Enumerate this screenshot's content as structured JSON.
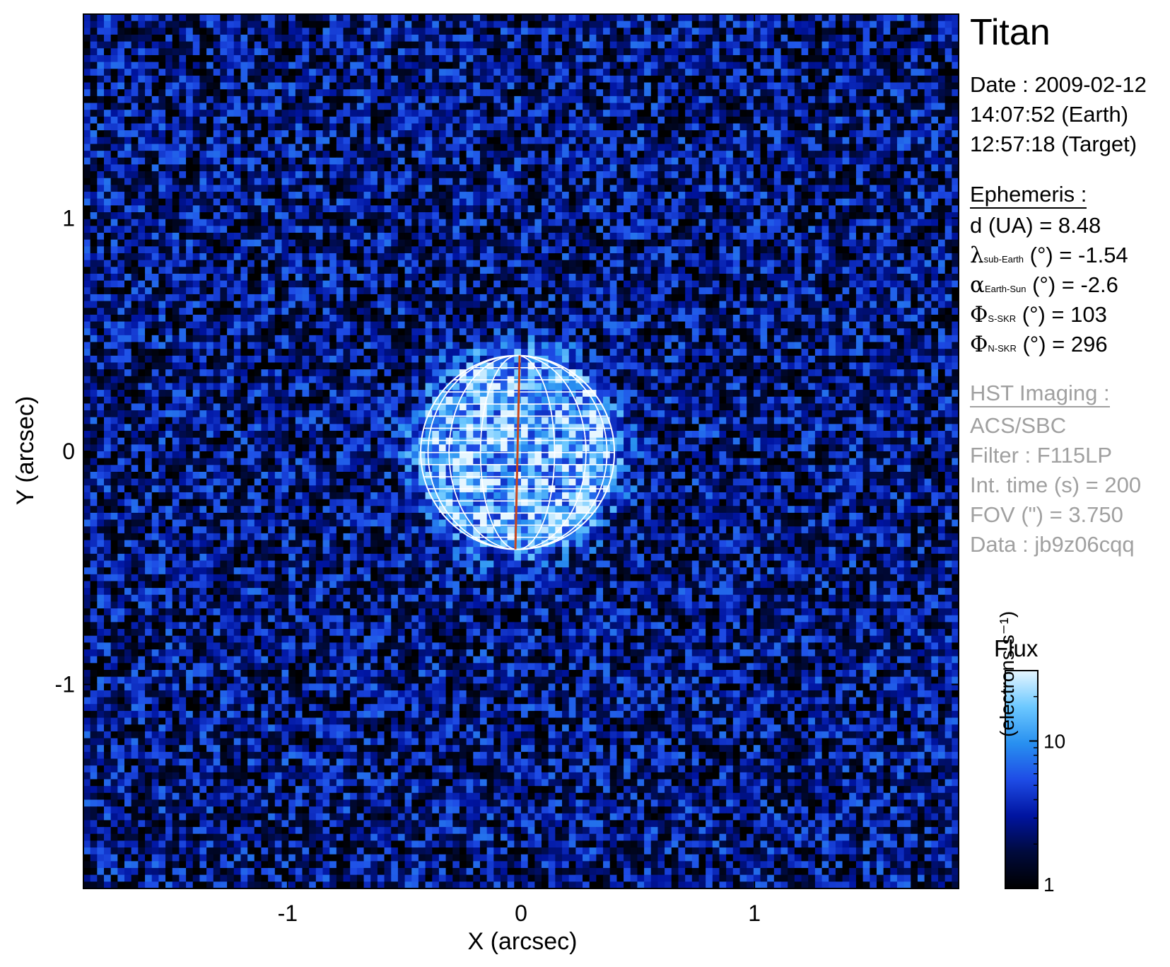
{
  "chart_data": {
    "type": "heatmap",
    "title": "Titan",
    "xlabel": "X (arcsec)",
    "ylabel": "Y (arcsec)",
    "xlim": [
      -1.875,
      1.875
    ],
    "ylim": [
      -1.875,
      1.875
    ],
    "x_ticks": [
      {
        "value": -1,
        "label": "-1"
      },
      {
        "value": 0,
        "label": "0"
      },
      {
        "value": 1,
        "label": "1"
      }
    ],
    "y_ticks": [
      {
        "value": 1,
        "label": "1"
      },
      {
        "value": 0,
        "label": "0"
      },
      {
        "value": -1,
        "label": "-1"
      }
    ],
    "colorbar": {
      "title": "Flux",
      "unit": "(electrons.s⁻¹)",
      "scale": "log",
      "range": [
        1,
        30
      ],
      "ticks": [
        {
          "value": 10,
          "label": "10"
        },
        {
          "value": 1,
          "label": "1"
        }
      ],
      "colors": [
        "#000000",
        "#000a3c",
        "#0014a0",
        "#1e4ce6",
        "#2890f0",
        "#6cc8ff",
        "#e6f6ff"
      ]
    },
    "disk": {
      "center": [
        -0.015,
        -0.005
      ],
      "radius": 0.415,
      "grid_color": "#ffffff",
      "meridian_color": "#c8461e",
      "latitude_lines": 16,
      "longitude_lines": 8
    },
    "background_flux": 2.5,
    "disk_flux": 12
  },
  "info": {
    "target": "Titan",
    "date_line": "Date : 2009-02-12",
    "time_earth": "14:07:52 (Earth)",
    "time_target": "12:57:18 (Target)",
    "ephemeris_header": "Ephemeris :",
    "ephemeris": [
      {
        "symbol": "",
        "name": "d (UA)",
        "subscript": "",
        "unit": "",
        "value": "= 8.48"
      },
      {
        "symbol": "λ",
        "name": "",
        "subscript": "sub-Earth",
        "unit": "(°)",
        "value": "= -1.54"
      },
      {
        "symbol": "α",
        "name": "",
        "subscript": "Earth-Sun",
        "unit": "(°)",
        "value": "= -2.6"
      },
      {
        "symbol": "Φ",
        "name": "",
        "subscript": "S-SKR",
        "unit": "(°)",
        "value": "= 103"
      },
      {
        "symbol": "Φ",
        "name": "",
        "subscript": "N-SKR",
        "unit": "(°)",
        "value": "= 296"
      }
    ],
    "hst_header": "HST Imaging :",
    "instrument": "ACS/SBC",
    "filter": "Filter : F115LP",
    "int_time": "Int. time (s) = 200",
    "fov": "FOV (\") = 3.750",
    "data_id": "Data : jb9z06cqq"
  }
}
